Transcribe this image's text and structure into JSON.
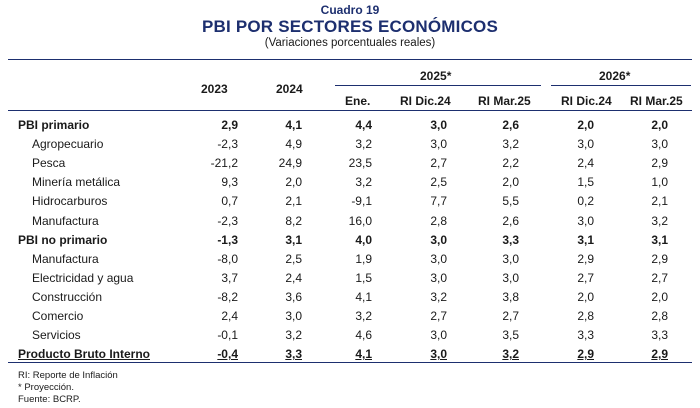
{
  "header": {
    "label": "Cuadro 19",
    "title": "PBI POR SECTORES ECONÓMICOS",
    "subtitle": "(Variaciones porcentuales reales)"
  },
  "columns": {
    "y2023": "2023",
    "y2024": "2024",
    "y2025": "2025*",
    "y2026": "2026*",
    "ene": "Ene.",
    "ri_dic24_a": "RI Dic.24",
    "ri_mar25_a": "RI Mar.25",
    "ri_dic24_b": "RI Dic.24",
    "ri_mar25_b": "RI Mar.25"
  },
  "rows": [
    {
      "label": "PBI primario",
      "values": [
        "2,9",
        "4,1",
        "4,4",
        "3,0",
        "2,6",
        "2,0",
        "2,0"
      ]
    },
    {
      "label": "Agropecuario",
      "values": [
        "-2,3",
        "4,9",
        "3,2",
        "3,0",
        "3,2",
        "3,0",
        "3,0"
      ]
    },
    {
      "label": "Pesca",
      "values": [
        "-21,2",
        "24,9",
        "23,5",
        "2,7",
        "2,2",
        "2,4",
        "2,9"
      ]
    },
    {
      "label": "Minería metálica",
      "values": [
        "9,3",
        "2,0",
        "3,2",
        "2,5",
        "2,0",
        "1,5",
        "1,0"
      ]
    },
    {
      "label": "Hidrocarburos",
      "values": [
        "0,7",
        "2,1",
        "-9,1",
        "7,7",
        "5,5",
        "0,2",
        "2,1"
      ]
    },
    {
      "label": "Manufactura",
      "values": [
        "-2,3",
        "8,2",
        "16,0",
        "2,8",
        "2,6",
        "3,0",
        "3,2"
      ]
    },
    {
      "label": "PBI no primario",
      "values": [
        "-1,3",
        "3,1",
        "4,0",
        "3,0",
        "3,3",
        "3,1",
        "3,1"
      ]
    },
    {
      "label": "Manufactura",
      "values": [
        "-8,0",
        "2,5",
        "1,9",
        "3,0",
        "3,0",
        "2,9",
        "2,9"
      ]
    },
    {
      "label": "Electricidad y agua",
      "values": [
        "3,7",
        "2,4",
        "1,5",
        "3,0",
        "3,0",
        "2,7",
        "2,7"
      ]
    },
    {
      "label": "Construcción",
      "values": [
        "-8,2",
        "3,6",
        "4,1",
        "3,2",
        "3,8",
        "2,0",
        "2,0"
      ]
    },
    {
      "label": "Comercio",
      "values": [
        "2,4",
        "3,0",
        "3,2",
        "2,7",
        "2,7",
        "2,8",
        "2,8"
      ]
    },
    {
      "label": "Servicios",
      "values": [
        "-0,1",
        "3,2",
        "4,6",
        "3,0",
        "3,5",
        "3,3",
        "3,3"
      ]
    },
    {
      "label": "Producto Bruto Interno",
      "values": [
        "-0,4",
        "3,3",
        "4,1",
        "3,0",
        "3,2",
        "2,9",
        "2,9"
      ]
    }
  ],
  "footnotes": {
    "ri": "RI: Reporte de Inflación",
    "proy": "* Proyección.",
    "fuente": "Fuente: BCRP."
  }
}
